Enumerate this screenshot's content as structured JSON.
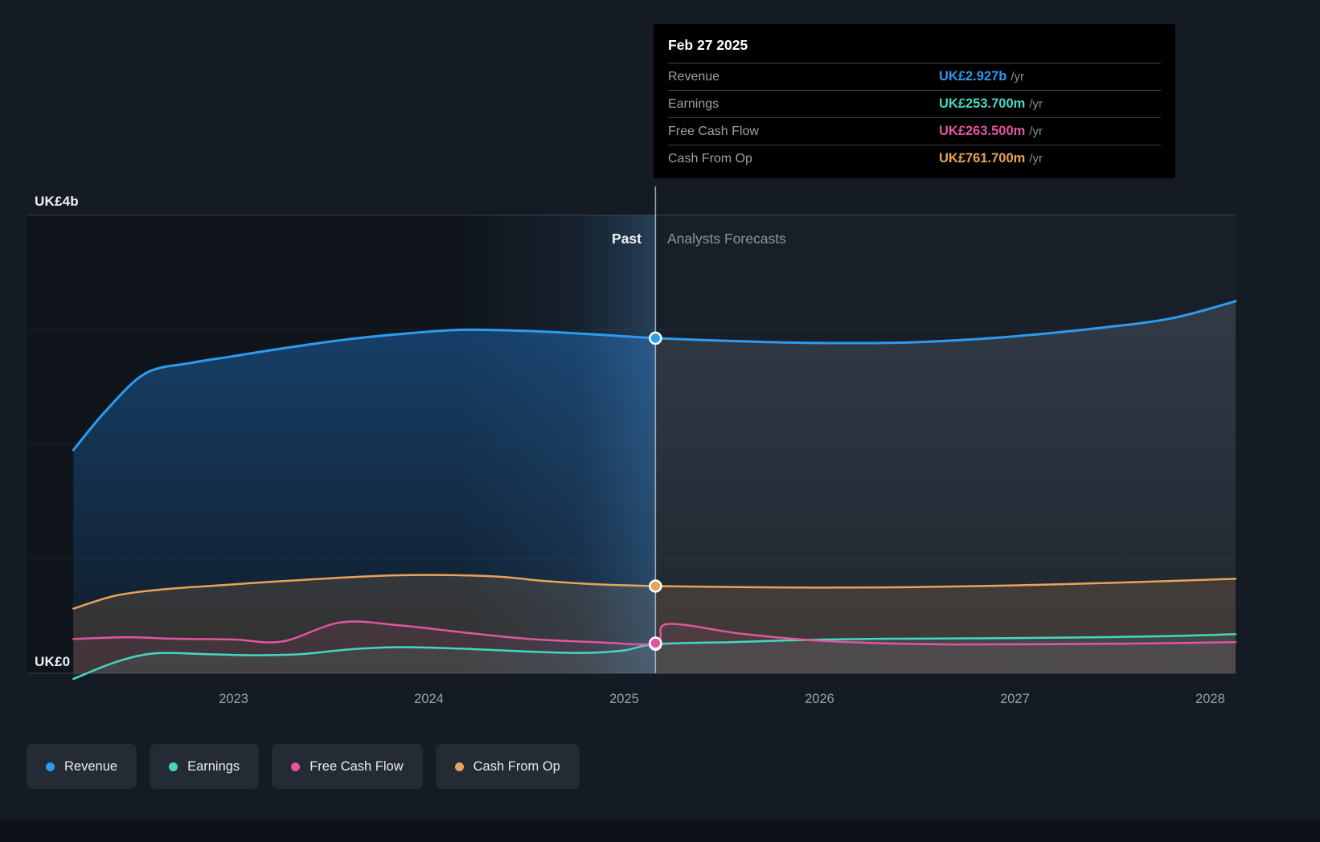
{
  "y_axis": {
    "top": "UK£4b",
    "bottom": "UK£0"
  },
  "divider": {
    "past_label": "Past",
    "forecast_label": "Analysts Forecasts"
  },
  "tooltip": {
    "date": "Feb 27 2025",
    "rows": [
      {
        "label": "Revenue",
        "value": "UK£2.927b",
        "suffix": "/yr",
        "color": "#2d9bf0"
      },
      {
        "label": "Earnings",
        "value": "UK£253.700m",
        "suffix": "/yr",
        "color": "#45d7c0"
      },
      {
        "label": "Free Cash Flow",
        "value": "UK£263.500m",
        "suffix": "/yr",
        "color": "#e0569f"
      },
      {
        "label": "Cash From Op",
        "value": "UK£761.700m",
        "suffix": "/yr",
        "color": "#e9a358"
      }
    ]
  },
  "legend": [
    {
      "label": "Revenue",
      "color": "#2d9bf0"
    },
    {
      "label": "Earnings",
      "color": "#45d7c0"
    },
    {
      "label": "Free Cash Flow",
      "color": "#e0569f"
    },
    {
      "label": "Cash From Op",
      "color": "#e9a358"
    }
  ],
  "chart_data": {
    "type": "area",
    "title": "Earnings and Revenue Growth with Analysts Forecasts",
    "x_range": [
      2021.94,
      2028.13
    ],
    "y_range": [
      0,
      4
    ],
    "y_unit": "UK£ billions",
    "y_gridlines": [
      0,
      1,
      2,
      3,
      4
    ],
    "x_ticks": [
      2023,
      2024,
      2025,
      2026,
      2027,
      2028
    ],
    "divider_x": 2025.16,
    "divider_date": "Feb 27 2025",
    "highlight_band": [
      2024.17,
      2025.16
    ],
    "values_at_divider": {
      "Revenue": "UK£2.927b/yr",
      "Earnings": "UK£253.700m/yr",
      "Free Cash Flow": "UK£263.500m/yr",
      "Cash From Op": "UK£761.700m/yr"
    },
    "series": [
      {
        "name": "Revenue",
        "color": "#2d9bf0",
        "width": 3,
        "points": [
          [
            2022.18,
            1.95
          ],
          [
            2022.35,
            2.3
          ],
          [
            2022.55,
            2.62
          ],
          [
            2022.78,
            2.71
          ],
          [
            2023.0,
            2.77
          ],
          [
            2023.3,
            2.85
          ],
          [
            2023.6,
            2.92
          ],
          [
            2023.9,
            2.97
          ],
          [
            2024.17,
            3.0
          ],
          [
            2024.5,
            2.99
          ],
          [
            2024.85,
            2.96
          ],
          [
            2025.16,
            2.927
          ],
          [
            2025.6,
            2.9
          ],
          [
            2026.0,
            2.885
          ],
          [
            2026.45,
            2.89
          ],
          [
            2026.9,
            2.93
          ],
          [
            2027.4,
            3.01
          ],
          [
            2027.8,
            3.1
          ],
          [
            2028.13,
            3.25
          ]
        ]
      },
      {
        "name": "Cash From Op",
        "color": "#e9a358",
        "width": 2.5,
        "points": [
          [
            2022.18,
            0.565
          ],
          [
            2022.4,
            0.68
          ],
          [
            2022.65,
            0.735
          ],
          [
            2022.9,
            0.765
          ],
          [
            2023.2,
            0.8
          ],
          [
            2023.5,
            0.83
          ],
          [
            2023.8,
            0.855
          ],
          [
            2024.1,
            0.858
          ],
          [
            2024.35,
            0.845
          ],
          [
            2024.6,
            0.805
          ],
          [
            2024.85,
            0.778
          ],
          [
            2025.16,
            0.7617
          ],
          [
            2025.6,
            0.753
          ],
          [
            2026.0,
            0.748
          ],
          [
            2026.5,
            0.753
          ],
          [
            2027.0,
            0.768
          ],
          [
            2027.5,
            0.79
          ],
          [
            2028.13,
            0.825
          ]
        ]
      },
      {
        "name": "Earnings",
        "color": "#45d7c0",
        "width": 2.5,
        "points": [
          [
            2022.18,
            -0.05
          ],
          [
            2022.4,
            0.1
          ],
          [
            2022.6,
            0.175
          ],
          [
            2022.85,
            0.168
          ],
          [
            2023.1,
            0.158
          ],
          [
            2023.35,
            0.168
          ],
          [
            2023.6,
            0.21
          ],
          [
            2023.85,
            0.228
          ],
          [
            2024.17,
            0.215
          ],
          [
            2024.5,
            0.19
          ],
          [
            2024.8,
            0.178
          ],
          [
            2025.0,
            0.2
          ],
          [
            2025.16,
            0.2537
          ],
          [
            2025.55,
            0.272
          ],
          [
            2025.95,
            0.292
          ],
          [
            2026.35,
            0.302
          ],
          [
            2026.8,
            0.305
          ],
          [
            2027.3,
            0.312
          ],
          [
            2027.8,
            0.325
          ],
          [
            2028.13,
            0.342
          ]
        ]
      },
      {
        "name": "Free Cash Flow",
        "color": "#e0569f",
        "width": 2.5,
        "points": [
          [
            2022.18,
            0.3
          ],
          [
            2022.45,
            0.315
          ],
          [
            2022.7,
            0.302
          ],
          [
            2023.0,
            0.295
          ],
          [
            2023.25,
            0.278
          ],
          [
            2023.55,
            0.445
          ],
          [
            2023.85,
            0.418
          ],
          [
            2024.17,
            0.358
          ],
          [
            2024.5,
            0.302
          ],
          [
            2024.85,
            0.272
          ],
          [
            2025.16,
            0.2635
          ],
          [
            2025.22,
            0.43
          ],
          [
            2025.6,
            0.345
          ],
          [
            2025.95,
            0.29
          ],
          [
            2026.3,
            0.263
          ],
          [
            2026.7,
            0.252
          ],
          [
            2027.2,
            0.255
          ],
          [
            2027.7,
            0.261
          ],
          [
            2028.13,
            0.272
          ]
        ]
      }
    ],
    "markers_at_divider": [
      {
        "series": "Revenue",
        "value": 2.927
      },
      {
        "series": "Cash From Op",
        "value": 0.7617
      },
      {
        "series": "Earnings",
        "value": 0.2537
      },
      {
        "series": "Free Cash Flow",
        "value": 0.2635
      }
    ]
  }
}
